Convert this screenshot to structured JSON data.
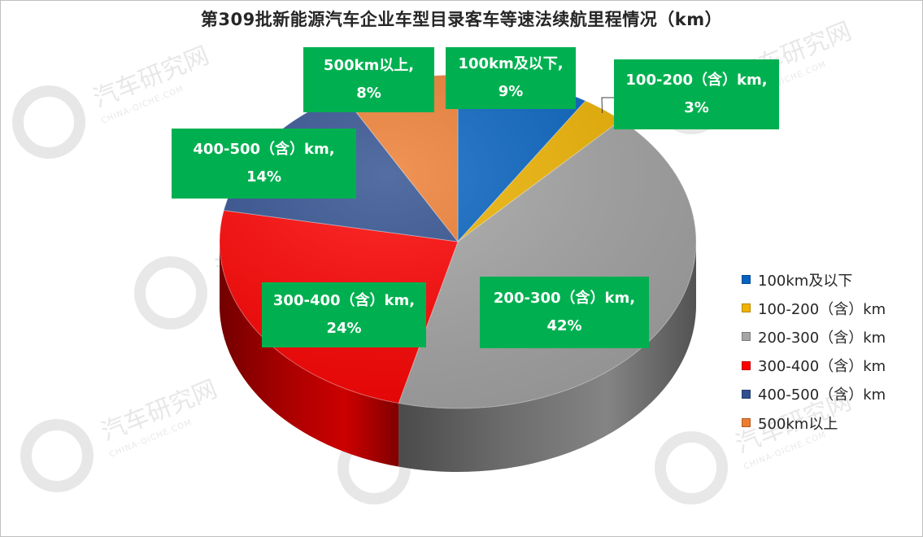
{
  "chart_data": {
    "type": "pie",
    "title": "第309批新能源汽车企业车型目录客车等速法续航里程情况（km）",
    "slices": [
      {
        "name": "100km及以下",
        "value": 9,
        "label_value": "9%",
        "color": "#0563c1"
      },
      {
        "name": "100-200（含）km",
        "value": 3,
        "label_value": "3%",
        "color": "#f0b400"
      },
      {
        "name": "200-300（含）km",
        "value": 42,
        "label_value": "42%",
        "color": "#a5a5a5"
      },
      {
        "name": "300-400（含）km",
        "value": 24,
        "label_value": "24%",
        "color": "#ff0000"
      },
      {
        "name": "400-500（含）km",
        "value": 14,
        "label_value": "14%",
        "color": "#2f4f8f"
      },
      {
        "name": "500km以上",
        "value": 8,
        "label_value": "8%",
        "color": "#ed7d31"
      }
    ],
    "data_labels": [
      {
        "line1": "100km及以下,",
        "line2": "9%"
      },
      {
        "line1": "100-200（含）km,",
        "line2": "3%"
      },
      {
        "line1": "200-300（含）km,",
        "line2": "42%"
      },
      {
        "line1": "300-400（含）km,",
        "line2": "24%"
      },
      {
        "line1": "400-500（含）km,",
        "line2": "14%"
      },
      {
        "line1": "500km以上,",
        "line2": "8%"
      }
    ],
    "legend_position": "right",
    "label_box_color": "#00b050"
  },
  "watermark": {
    "text": "汽车研究网",
    "subtext": "CHINA-QICHE.COM"
  }
}
